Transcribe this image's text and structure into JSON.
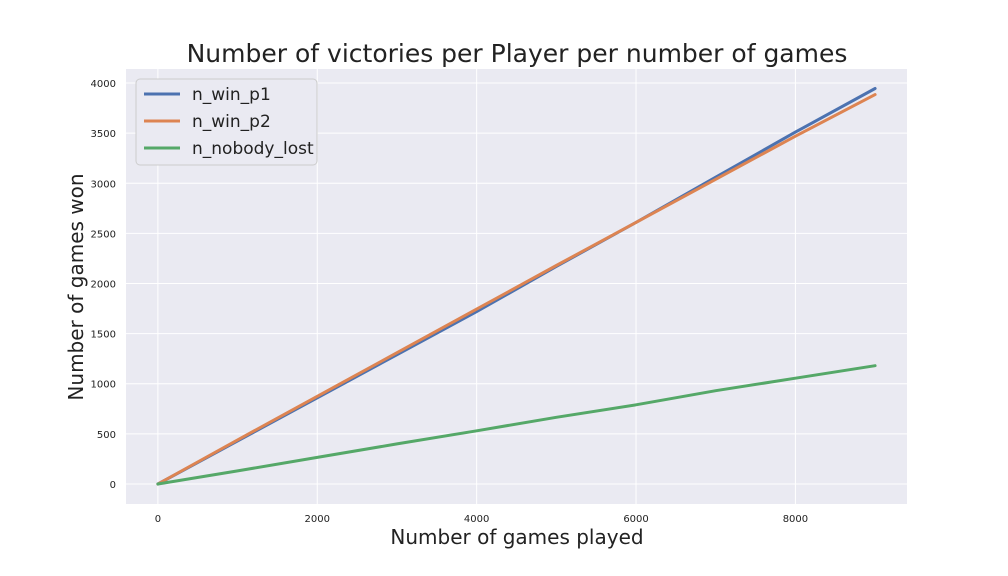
{
  "chart_data": {
    "type": "line",
    "title": "Number of victories per Player per number of games",
    "xlabel": "Number of games played",
    "ylabel": "Number of games won",
    "xlim": [
      -400,
      9400
    ],
    "ylim": [
      -200,
      4140
    ],
    "xticks": [
      0,
      2000,
      4000,
      6000,
      8000
    ],
    "xtick_labels": [
      "0",
      "2000",
      "4000",
      "6000",
      "8000"
    ],
    "yticks": [
      0,
      500,
      1000,
      1500,
      2000,
      2500,
      3000,
      3500,
      4000
    ],
    "ytick_labels": [
      "0",
      "500",
      "1000",
      "1500",
      "2000",
      "2500",
      "3000",
      "3500",
      "4000"
    ],
    "grid": true,
    "legend_position": "top-left",
    "series": [
      {
        "name": "n_win_p1",
        "color": "#4c72b0",
        "x": [
          0,
          1000,
          2000,
          3000,
          4000,
          5000,
          6000,
          7000,
          8000,
          9000
        ],
        "y": [
          0,
          430,
          860,
          1290,
          1720,
          2170,
          2610,
          3060,
          3510,
          3945
        ]
      },
      {
        "name": "n_win_p2",
        "color": "#dd8452",
        "x": [
          0,
          1000,
          2000,
          3000,
          4000,
          5000,
          6000,
          7000,
          8000,
          9000
        ],
        "y": [
          0,
          440,
          875,
          1310,
          1745,
          2180,
          2610,
          3040,
          3470,
          3885
        ]
      },
      {
        "name": "n_nobody_lost",
        "color": "#55a868",
        "x": [
          0,
          1000,
          2000,
          3000,
          4000,
          5000,
          6000,
          7000,
          8000,
          9000
        ],
        "y": [
          0,
          130,
          265,
          400,
          530,
          665,
          790,
          930,
          1055,
          1180
        ]
      }
    ]
  }
}
